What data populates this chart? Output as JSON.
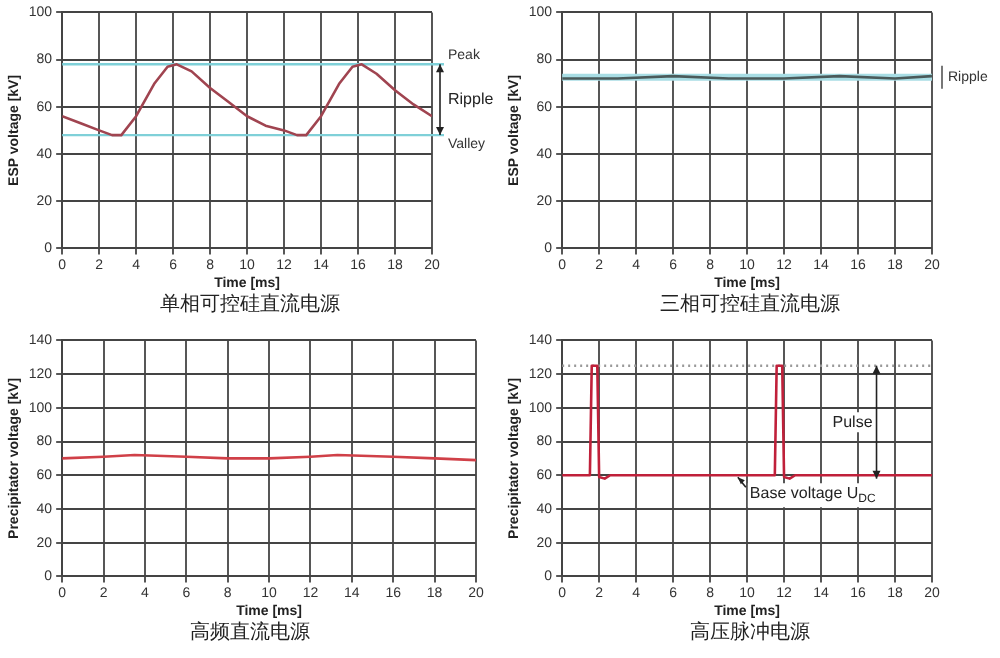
{
  "chart_data": [
    {
      "type": "line",
      "title": "单相可控硅直流电源",
      "xlabel": "Time [ms]",
      "ylabel": "ESP voltage [kV]",
      "xlim": [
        0,
        20
      ],
      "xticks": [
        0,
        2,
        4,
        6,
        8,
        10,
        12,
        14,
        16,
        18,
        20
      ],
      "ylim": [
        0,
        100
      ],
      "yticks": [
        0,
        20,
        40,
        60,
        80,
        100
      ],
      "grid": true,
      "legend": false,
      "marker": "none",
      "series": [
        {
          "color": "#a04450",
          "x": [
            0,
            1,
            2,
            2.7,
            3.2,
            4,
            5,
            5.7,
            6.2,
            7,
            8,
            9,
            10,
            11,
            12,
            12.7,
            13.2,
            14,
            15,
            15.7,
            16.2,
            17,
            18,
            19,
            20
          ],
          "values": [
            56,
            53,
            50,
            48,
            48,
            56,
            70,
            77,
            78,
            75,
            68,
            62,
            56,
            52,
            50,
            48,
            48,
            56,
            70,
            77,
            78,
            74,
            67,
            61,
            56
          ]
        }
      ],
      "ref_lines": [
        {
          "axis": "y",
          "value": 78,
          "label": "Peak",
          "color": "#7fd0d8"
        },
        {
          "axis": "y",
          "value": 48,
          "label": "Valley",
          "color": "#7fd0d8"
        }
      ],
      "annotations": [
        "Ripple"
      ]
    },
    {
      "type": "line",
      "title": "三相可控硅直流电源",
      "xlabel": "Time [ms]",
      "ylabel": "ESP voltage [kV]",
      "xlim": [
        0,
        20
      ],
      "xticks": [
        0,
        2,
        4,
        6,
        8,
        10,
        12,
        14,
        16,
        18,
        20
      ],
      "ylim": [
        0,
        100
      ],
      "yticks": [
        0,
        20,
        40,
        60,
        80,
        100
      ],
      "grid": true,
      "legend": false,
      "marker": "none",
      "series": [
        {
          "color": "#4a5a5a",
          "x": [
            0,
            3,
            6,
            9,
            12,
            15,
            18,
            20
          ],
          "values": [
            72,
            72,
            73,
            72,
            72,
            73,
            72,
            73
          ]
        }
      ],
      "bands": [
        {
          "axis": "y",
          "from": 71,
          "to": 74,
          "label": "Ripple",
          "color": "#a8dde4"
        }
      ]
    },
    {
      "type": "line",
      "title": "高频直流电源",
      "xlabel": "Time [ms]",
      "ylabel": "Precipitator voltage [kV]",
      "xlim": [
        0,
        20
      ],
      "xticks": [
        0,
        2,
        4,
        6,
        8,
        10,
        12,
        14,
        16,
        18,
        20
      ],
      "ylim": [
        0,
        140
      ],
      "yticks": [
        0,
        20,
        40,
        60,
        80,
        100,
        120,
        140
      ],
      "grid": true,
      "legend": false,
      "marker": "none",
      "series": [
        {
          "color": "#d04048",
          "x": [
            0,
            2,
            3.5,
            6,
            8,
            10,
            12,
            13.3,
            16,
            18,
            20
          ],
          "values": [
            70,
            71,
            72,
            71,
            70,
            70,
            71,
            72,
            71,
            70,
            69
          ]
        }
      ]
    },
    {
      "type": "line",
      "title": "高压脉冲电源",
      "xlabel": "Time [ms]",
      "ylabel": "Precipitator voltage [kV]",
      "xlim": [
        0,
        20
      ],
      "xticks": [
        0,
        2,
        4,
        6,
        8,
        10,
        12,
        14,
        16,
        18,
        20
      ],
      "ylim": [
        0,
        140
      ],
      "yticks": [
        0,
        20,
        40,
        60,
        80,
        100,
        120,
        140
      ],
      "grid": true,
      "legend": false,
      "marker": "none",
      "series": [
        {
          "color": "#c0203a",
          "x": [
            0,
            1.5,
            1.6,
            1.9,
            2.0,
            2.3,
            2.6,
            11.5,
            11.6,
            11.9,
            12.0,
            12.3,
            12.6,
            20
          ],
          "values": [
            60,
            60,
            125,
            125,
            59,
            58,
            60,
            60,
            125,
            125,
            59,
            58,
            60,
            60
          ]
        }
      ],
      "ref_lines": [
        {
          "axis": "y",
          "value": 125,
          "color": "#999999",
          "line_style": "dotted"
        }
      ],
      "annotations": [
        "Pulse",
        {
          "text": "Base voltage U$_{DC}$",
          "x": 9.5,
          "y": 60
        }
      ]
    }
  ]
}
